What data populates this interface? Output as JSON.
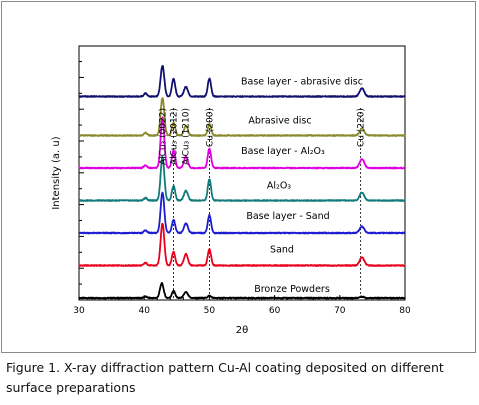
{
  "caption": "Figure 1. X-ray diffraction pattern Cu-Al coating deposited on different surface preparations",
  "chart_data": {
    "type": "line",
    "xlabel": "2θ",
    "ylabel": "Intensity (a. u)",
    "xlim": [
      30,
      80
    ],
    "x_ticks": [
      30,
      40,
      50,
      60,
      70,
      80
    ],
    "grid": false,
    "peak_markers": [
      {
        "label": "AlCu₃ (0022)",
        "x": 42.8,
        "dashed": false
      },
      {
        "label": "AlCu₃ (2012)",
        "x": 44.5,
        "dashed": true
      },
      {
        "label": "AlCu₃ (1210)",
        "x": 46.3,
        "dashed": false
      },
      {
        "label": "Cu (200)",
        "x": 50.0,
        "dashed": true
      },
      {
        "label": "Cu (220)",
        "x": 73.2,
        "dashed": true
      }
    ],
    "series": [
      {
        "name": "Bronze Powders",
        "color": "#000000",
        "baseline": 0.0,
        "peaks": [
          [
            40.2,
            0.04
          ],
          [
            42.7,
            0.45
          ],
          [
            44.5,
            0.22
          ],
          [
            46.4,
            0.18
          ],
          [
            50.0,
            0.07
          ],
          [
            73.4,
            0.04
          ]
        ]
      },
      {
        "name": "Sand",
        "color": "#e8001c",
        "baseline": 1.0,
        "peaks": [
          [
            40.2,
            0.08
          ],
          [
            42.8,
            1.3
          ],
          [
            44.5,
            0.42
          ],
          [
            46.4,
            0.35
          ],
          [
            50.0,
            0.5
          ],
          [
            73.4,
            0.25
          ]
        ]
      },
      {
        "name": "Base  layer - Sand",
        "color": "#1c1cd0",
        "baseline": 2.0,
        "peaks": [
          [
            40.2,
            0.08
          ],
          [
            42.8,
            1.25
          ],
          [
            44.5,
            0.4
          ],
          [
            46.4,
            0.3
          ],
          [
            50.0,
            0.55
          ],
          [
            73.4,
            0.2
          ]
        ]
      },
      {
        "name": "Al₂O₃",
        "color": "#127a7a",
        "baseline": 3.0,
        "peaks": [
          [
            40.2,
            0.08
          ],
          [
            42.8,
            1.35
          ],
          [
            44.5,
            0.45
          ],
          [
            46.4,
            0.3
          ],
          [
            50.0,
            0.65
          ],
          [
            73.4,
            0.25
          ]
        ]
      },
      {
        "name": "Base layer - Al₂O₃",
        "color": "#e000e0",
        "baseline": 4.0,
        "peaks": [
          [
            40.2,
            0.08
          ],
          [
            42.8,
            1.55
          ],
          [
            44.5,
            0.55
          ],
          [
            46.4,
            0.35
          ],
          [
            50.0,
            0.6
          ],
          [
            73.4,
            0.28
          ]
        ]
      },
      {
        "name": "Abrasive disc",
        "color": "#8a8a2c",
        "baseline": 5.0,
        "peaks": [
          [
            40.2,
            0.08
          ],
          [
            42.8,
            1.15
          ],
          [
            44.5,
            0.4
          ],
          [
            46.4,
            0.3
          ],
          [
            50.0,
            0.35
          ],
          [
            73.4,
            0.22
          ]
        ]
      },
      {
        "name": "Base layer - abrasive disc",
        "color": "#101070",
        "baseline": 6.2,
        "peaks": [
          [
            40.2,
            0.1
          ],
          [
            42.8,
            0.95
          ],
          [
            44.5,
            0.55
          ],
          [
            46.4,
            0.3
          ],
          [
            50.0,
            0.55
          ],
          [
            73.4,
            0.25
          ]
        ]
      }
    ]
  }
}
